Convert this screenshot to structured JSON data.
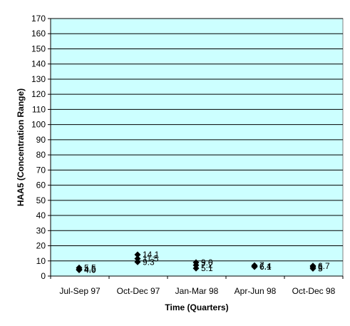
{
  "chart_data": {
    "type": "scatter",
    "title": "",
    "xlabel": "Time (Quarters)",
    "ylabel": "HAA5 (Concentration Range)",
    "ylim": [
      0,
      170
    ],
    "ytick_step": 10,
    "grid": true,
    "legend": "none",
    "categories": [
      "Jul-Sep 97",
      "Oct-Dec 97",
      "Jan-Mar 98",
      "Apr-Jun 98",
      "Oct-Dec 98"
    ],
    "points": [
      {
        "category": "Jul-Sep 97",
        "value": 5.5,
        "label": "5.5"
      },
      {
        "category": "Jul-Sep 97",
        "value": 4.5,
        "label": "4.5"
      },
      {
        "category": "Jul-Sep 97",
        "value": 4.0,
        "label": "4.0"
      },
      {
        "category": "Oct-Dec 97",
        "value": 14.1,
        "label": "14.1"
      },
      {
        "category": "Oct-Dec 97",
        "value": 11.5,
        "label": "11.5"
      },
      {
        "category": "Oct-Dec 97",
        "value": 9.3,
        "label": "9.3"
      },
      {
        "category": "Jan-Mar 98",
        "value": 9.0,
        "label": "9.0"
      },
      {
        "category": "Jan-Mar 98",
        "value": 7.2,
        "label": "7.2"
      },
      {
        "category": "Jan-Mar 98",
        "value": 5.1,
        "label": "5.1"
      },
      {
        "category": "Apr-Jun 98",
        "value": 7.0,
        "label": "7"
      },
      {
        "category": "Apr-Jun 98",
        "value": 6.4,
        "label": "6.4"
      },
      {
        "category": "Apr-Jun 98",
        "value": 6.1,
        "label": "6.1"
      },
      {
        "category": "Oct-Dec 98",
        "value": 6.7,
        "label": "6.7"
      },
      {
        "category": "Oct-Dec 98",
        "value": 6.0,
        "label": "6"
      },
      {
        "category": "Oct-Dec 98",
        "value": 5.0,
        "label": "5"
      }
    ],
    "colors": {
      "plot_background": "#ccffff",
      "marker": "#000000",
      "grid": "#000000"
    }
  }
}
